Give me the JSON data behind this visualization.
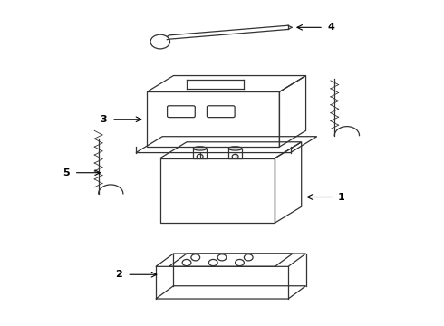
{
  "bg_color": "#ffffff",
  "line_color": "#333333",
  "label_color": "#000000",
  "fig_width": 4.9,
  "fig_height": 3.6,
  "dpi": 100
}
